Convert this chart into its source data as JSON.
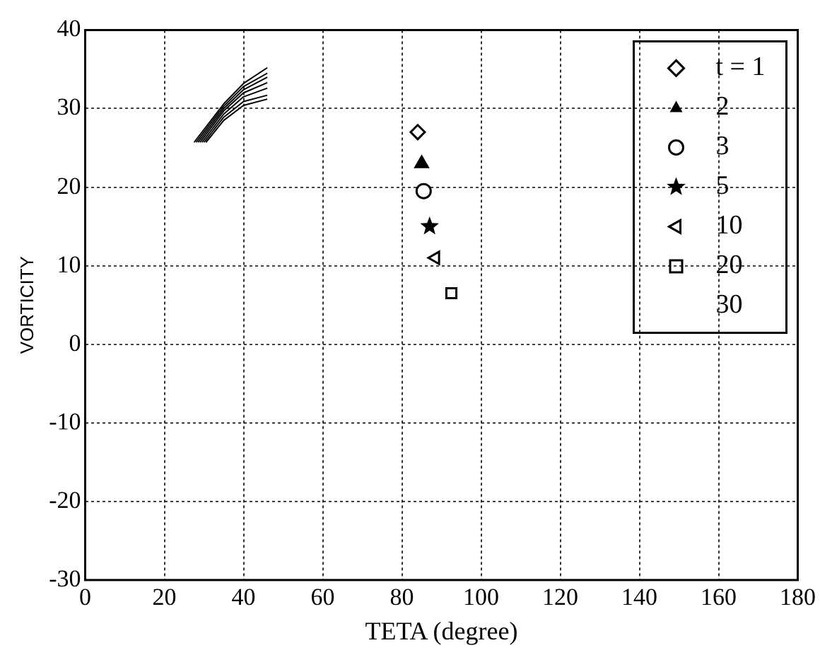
{
  "chart_data": {
    "type": "scatter",
    "xlabel": "TETA (degree)",
    "ylabel": "VORTICITY",
    "xlim": [
      0,
      180
    ],
    "xticks": [
      0,
      20,
      40,
      60,
      80,
      100,
      120,
      140,
      160,
      180
    ],
    "ylim": [
      -30,
      40
    ],
    "yticks": [
      -30,
      -20,
      -10,
      0,
      10,
      20,
      30,
      40
    ],
    "grid": true,
    "legend": "top right",
    "series": [
      {
        "name": "t = 1",
        "color": "#000000",
        "marker": "diamond",
        "x": [
          84
        ],
        "values": [
          27
        ]
      },
      {
        "name": "2",
        "color": "#000000",
        "marker": "triangle",
        "x": [
          85
        ],
        "values": [
          23
        ]
      },
      {
        "name": "3",
        "color": "#000000",
        "marker": "circle",
        "x": [
          85.5
        ],
        "values": [
          19.5
        ]
      },
      {
        "name": "5",
        "color": "#000000",
        "marker": "star",
        "x": [
          87
        ],
        "values": [
          15
        ]
      },
      {
        "name": "10",
        "color": "#000000",
        "marker": "triangle-left",
        "x": [
          88.5
        ],
        "values": [
          11
        ]
      },
      {
        "name": "20",
        "color": "#000000",
        "marker": "square",
        "x": [
          92.5
        ],
        "values": [
          6.5
        ]
      },
      {
        "name": "30",
        "color": "#000000",
        "marker": "none"
      },
      {
        "type": "line",
        "color": "#000000",
        "marker": "none",
        "x": [
          27.5,
          35,
          40,
          46
        ],
        "values": [
          25.7,
          30.6,
          33.2,
          35.2
        ]
      },
      {
        "type": "line",
        "color": "#000000",
        "marker": "none",
        "x": [
          28,
          35,
          40,
          46
        ],
        "values": [
          25.7,
          30.3,
          32.8,
          34.5
        ]
      },
      {
        "type": "line",
        "color": "#000000",
        "marker": "none",
        "x": [
          28.5,
          35,
          40,
          46
        ],
        "values": [
          25.7,
          30,
          32.4,
          34
        ]
      },
      {
        "type": "line",
        "color": "#000000",
        "marker": "none",
        "x": [
          29,
          35,
          40,
          46
        ],
        "values": [
          25.7,
          29.7,
          32,
          33.3
        ]
      },
      {
        "type": "line",
        "color": "#000000",
        "marker": "none",
        "x": [
          29.5,
          35,
          40,
          46
        ],
        "values": [
          25.7,
          29.3,
          31.5,
          32.6
        ]
      },
      {
        "type": "line",
        "color": "#000000",
        "marker": "none",
        "x": [
          30,
          35,
          40,
          46
        ],
        "values": [
          25.7,
          28.9,
          30.9,
          31.7
        ]
      },
      {
        "type": "line",
        "color": "#000000",
        "marker": "none",
        "x": [
          30.5,
          35,
          40,
          46
        ],
        "values": [
          25.7,
          28.5,
          30.4,
          31.2
        ]
      }
    ]
  }
}
